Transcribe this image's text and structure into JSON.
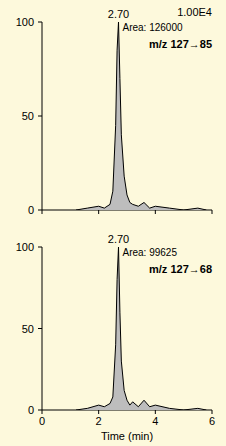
{
  "chart_data": [
    {
      "type": "line",
      "title": "m/z 127→85",
      "subtitle": "1.00E4",
      "peak_label": "2.70",
      "area_label": "Area: 126000",
      "x": [
        1.2,
        1.6,
        2.0,
        2.2,
        2.4,
        2.5,
        2.6,
        2.65,
        2.7,
        2.75,
        2.8,
        2.9,
        3.0,
        3.1,
        3.2,
        3.4,
        3.6,
        3.8,
        4.0,
        4.5,
        5.0,
        5.5,
        5.8
      ],
      "values": [
        0,
        1,
        2,
        1,
        3,
        10,
        45,
        85,
        100,
        70,
        40,
        18,
        8,
        4,
        3,
        2,
        4,
        1,
        2,
        1,
        0,
        1,
        0
      ],
      "color": "#000000",
      "xlim": [
        0,
        6
      ],
      "xticks": [
        0,
        2,
        4,
        6
      ],
      "ylim": [
        0,
        100
      ],
      "yticks": [
        0,
        50,
        100
      ],
      "tick_labels": "y"
    },
    {
      "type": "line",
      "title": "m/z 127→68",
      "peak_label": "2.70",
      "area_label": "Area: 99625",
      "x_label": "Time (min)",
      "x": [
        1.2,
        1.6,
        2.0,
        2.2,
        2.4,
        2.5,
        2.6,
        2.65,
        2.7,
        2.75,
        2.8,
        2.9,
        3.0,
        3.1,
        3.2,
        3.4,
        3.6,
        3.8,
        4.0,
        4.5,
        5.0,
        5.5,
        5.8
      ],
      "values": [
        0,
        1,
        3,
        2,
        4,
        8,
        40,
        80,
        100,
        60,
        30,
        12,
        6,
        3,
        5,
        2,
        6,
        2,
        3,
        1,
        0,
        1,
        0
      ],
      "color": "#000000",
      "xlim": [
        0,
        6
      ],
      "xticks": [
        0,
        2,
        4,
        6
      ],
      "ylim": [
        0,
        100
      ],
      "yticks": [
        0,
        50,
        100
      ]
    }
  ]
}
